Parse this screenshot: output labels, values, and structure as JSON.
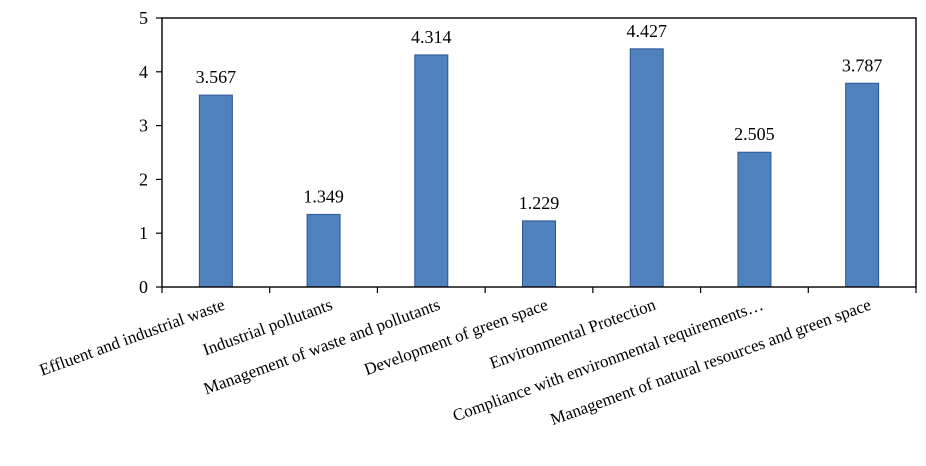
{
  "chart_data": {
    "type": "bar",
    "title": "",
    "xlabel": "",
    "ylabel": "",
    "ylim": [
      0,
      5
    ],
    "y_ticks": [
      0,
      1,
      2,
      3,
      4,
      5
    ],
    "grid": false,
    "legend": "none",
    "categories": [
      "Effluent and industrial waste",
      "Industrial pollutants",
      "Management of waste and pollutants",
      "Development of green space",
      "Environmental Protection",
      "Compliance with environmental requirements…",
      "Management of natural resources and green space"
    ],
    "values": [
      3.567,
      1.349,
      4.314,
      1.229,
      4.427,
      2.505,
      3.787
    ],
    "data_labels": [
      "3.567",
      "1.349",
      "4.314",
      "1.229",
      "4.427",
      "2.505",
      "3.787"
    ],
    "colors": {
      "bar_fill": "#4f81bd",
      "bar_stroke": "#2f5597",
      "axis": "#000000",
      "text": "#000000"
    }
  }
}
